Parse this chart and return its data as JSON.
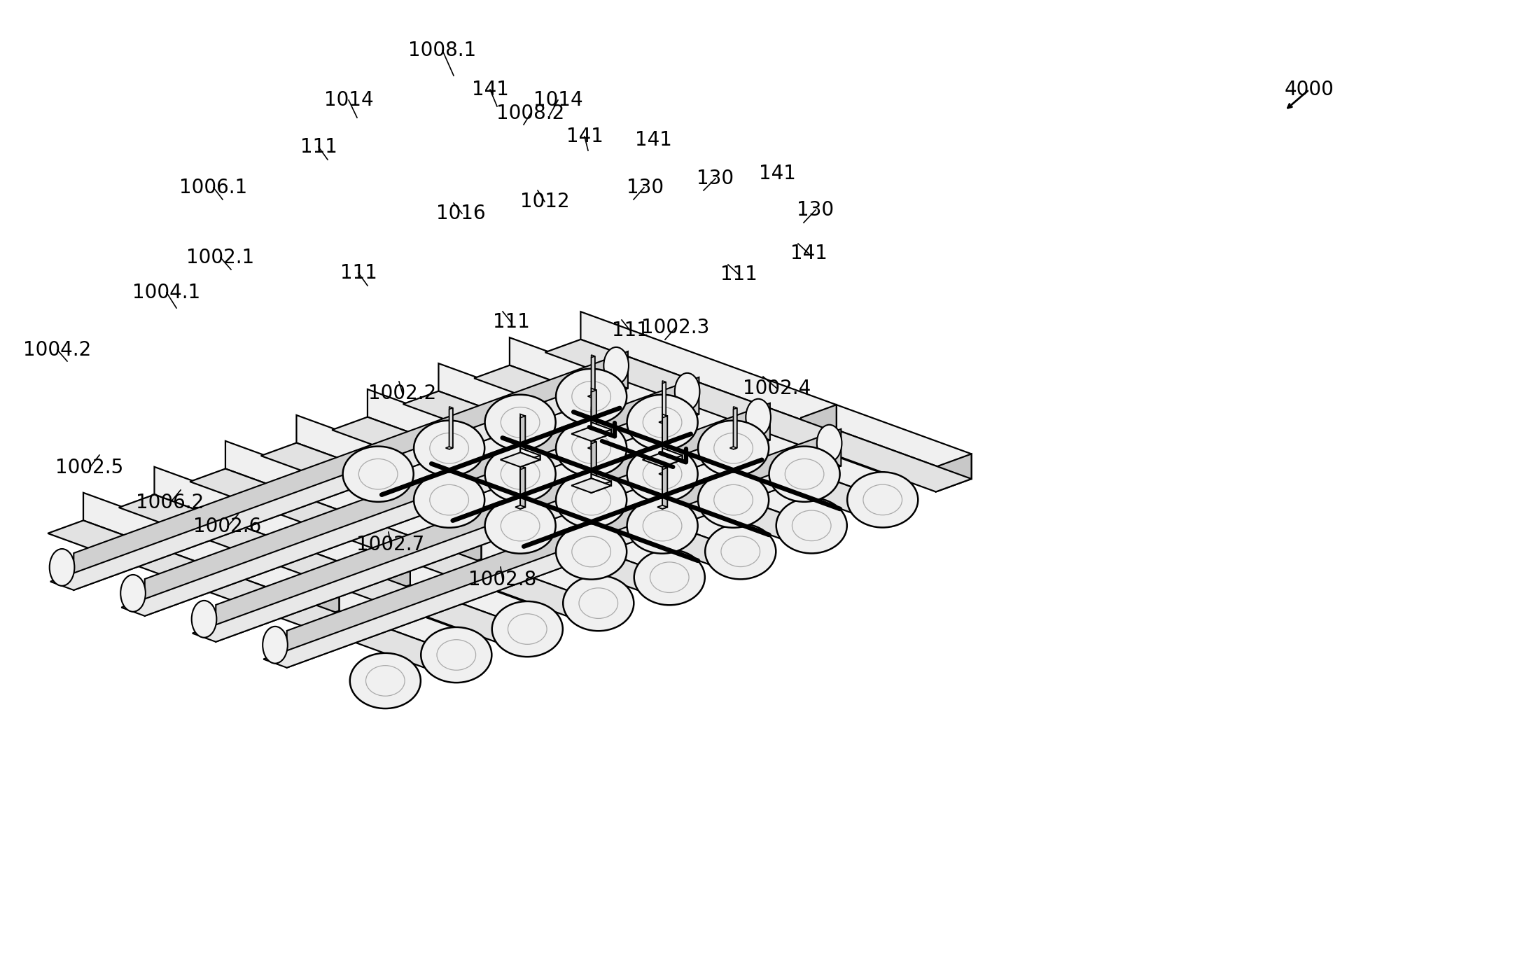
{
  "bg_color": "#ffffff",
  "line_color": "#000000",
  "figsize": [
    21.84,
    13.87
  ],
  "dpi": 100,
  "labels": [
    [
      "4000",
      1870,
      128
    ],
    [
      "1008.1",
      632,
      72
    ],
    [
      "141",
      700,
      128
    ],
    [
      "1008.2",
      758,
      162
    ],
    [
      "1014",
      498,
      143
    ],
    [
      "1014",
      797,
      143
    ],
    [
      "141",
      835,
      195
    ],
    [
      "141",
      933,
      200
    ],
    [
      "111",
      455,
      210
    ],
    [
      "1006.1",
      305,
      268
    ],
    [
      "1016",
      658,
      305
    ],
    [
      "1012",
      778,
      288
    ],
    [
      "130",
      922,
      268
    ],
    [
      "130",
      1022,
      255
    ],
    [
      "141",
      1110,
      248
    ],
    [
      "130",
      1165,
      300
    ],
    [
      "111",
      512,
      390
    ],
    [
      "1002.1",
      315,
      368
    ],
    [
      "1004.1",
      238,
      418
    ],
    [
      "111",
      730,
      460
    ],
    [
      "111",
      900,
      472
    ],
    [
      "1002.3",
      965,
      468
    ],
    [
      "141",
      1155,
      362
    ],
    [
      "111",
      1055,
      392
    ],
    [
      "1004.2",
      82,
      500
    ],
    [
      "1002.2",
      575,
      562
    ],
    [
      "1002.4",
      1110,
      555
    ],
    [
      "1002.5",
      128,
      668
    ],
    [
      "1006.2",
      243,
      718
    ],
    [
      "1002.6",
      325,
      752
    ],
    [
      "1002.7",
      558,
      778
    ],
    [
      "1002.8",
      718,
      828
    ]
  ]
}
